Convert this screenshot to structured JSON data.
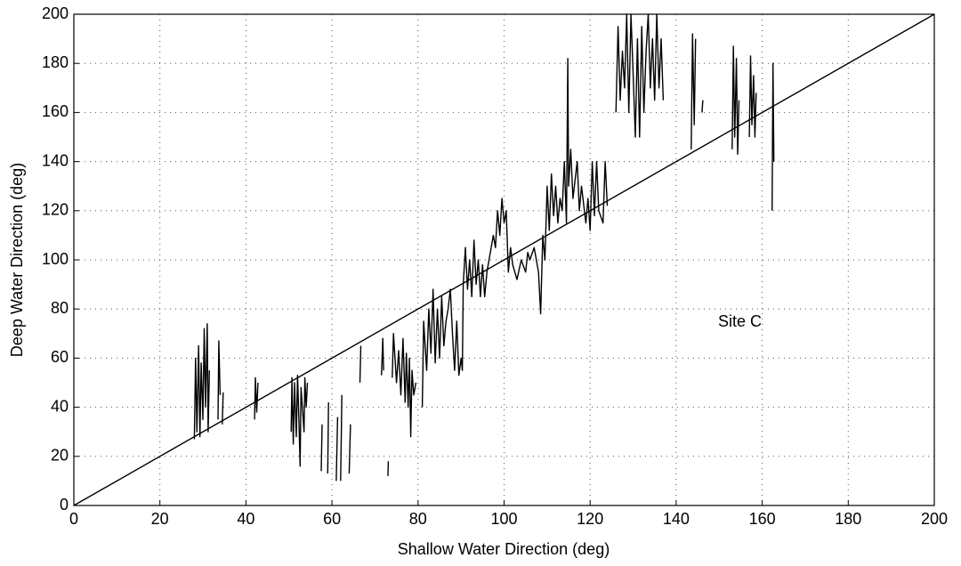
{
  "chart_data": {
    "type": "line",
    "xlabel": "Shallow Water Direction (deg)",
    "ylabel": "Deep Water Direction (deg)",
    "annotation": "Site C",
    "xlim": [
      0,
      200
    ],
    "ylim": [
      0,
      200
    ],
    "xticks": [
      0,
      20,
      40,
      60,
      80,
      100,
      120,
      140,
      160,
      180,
      200
    ],
    "yticks": [
      0,
      20,
      40,
      60,
      80,
      100,
      120,
      140,
      160,
      180,
      200
    ],
    "grid": true,
    "series": [
      {
        "color": "#000000",
        "x": [
          28,
          28.3,
          28.6,
          29,
          29.3,
          29.6,
          30,
          30.3,
          30.6,
          31,
          31.2,
          31.5,
          null,
          33.5,
          33.7,
          34,
          null,
          34.5,
          34.7,
          null,
          42,
          42.2,
          42.5,
          42.8,
          null,
          50.5,
          50.7,
          51,
          51.3,
          51.7,
          52,
          52.3,
          52.6,
          52.8,
          53.5,
          53.7,
          54,
          54.3,
          null,
          57.5,
          57.7,
          null,
          59,
          59.2,
          null,
          61,
          61.3,
          null,
          62,
          62.3,
          null,
          64,
          64.3,
          null,
          66.5,
          66.7,
          null,
          71.5,
          71.8,
          72,
          null,
          73,
          73.1,
          null,
          74,
          74.3,
          75,
          75.5,
          76,
          76.5,
          77,
          77.3,
          77.7,
          78,
          78.3,
          78.6,
          79,
          79.5,
          null,
          81,
          81.3,
          82,
          82.5,
          83,
          83.5,
          84,
          84.5,
          85,
          85.5,
          86,
          86.5,
          87,
          87.5,
          88,
          88.5,
          89,
          89.5,
          90,
          90.3,
          90.5,
          91,
          91.5,
          92,
          92.5,
          93,
          93.5,
          94,
          94.5,
          95,
          95.5,
          96,
          96.5,
          97,
          97.5,
          98,
          98.5,
          99,
          99.5,
          100,
          100.5,
          101,
          101.5,
          102,
          103,
          104,
          105,
          105.5,
          106,
          107,
          108,
          108.5,
          109,
          109.5,
          110,
          110.5,
          111,
          111.5,
          112,
          112.5,
          113,
          113.5,
          114,
          114.5,
          114.8,
          115,
          115.5,
          116,
          117,
          117.5,
          118,
          119,
          119.5,
          120,
          120.5,
          121,
          121.5,
          122,
          123,
          123.5,
          124,
          null,
          126,
          126.5,
          127,
          127.5,
          128,
          128.5,
          129,
          129.5,
          130,
          130.5,
          131,
          131.5,
          132,
          132.5,
          133,
          133.5,
          134,
          134.5,
          135,
          135.5,
          136,
          136.5,
          137,
          null,
          143.5,
          143.8,
          144.2,
          144.5,
          null,
          146,
          146.2,
          null,
          153,
          153.3,
          153.6,
          154,
          154.3,
          154.6,
          null,
          157,
          157.3,
          157.6,
          158,
          158.3,
          158.6,
          null,
          162.3,
          162.5,
          162.7
        ],
        "values": [
          27,
          60,
          30,
          65,
          28,
          58,
          35,
          72,
          40,
          74,
          30,
          55,
          null,
          35,
          67,
          45,
          null,
          33,
          46,
          null,
          35,
          52,
          38,
          50,
          null,
          30,
          52,
          25,
          50,
          28,
          53,
          35,
          16,
          48,
          30,
          52,
          40,
          50,
          null,
          14,
          33,
          null,
          13,
          42,
          null,
          10,
          36,
          null,
          10,
          45,
          null,
          13,
          33,
          null,
          50,
          65,
          null,
          53,
          68,
          55,
          null,
          12,
          18,
          null,
          52,
          70,
          50,
          63,
          45,
          68,
          42,
          62,
          40,
          60,
          28,
          55,
          45,
          50,
          null,
          40,
          75,
          55,
          80,
          62,
          88,
          58,
          80,
          60,
          85,
          65,
          75,
          80,
          88,
          70,
          55,
          75,
          53,
          60,
          55,
          90,
          105,
          88,
          100,
          85,
          108,
          90,
          100,
          85,
          98,
          85,
          95,
          100,
          105,
          110,
          105,
          120,
          110,
          125,
          115,
          120,
          95,
          105,
          98,
          92,
          100,
          95,
          103,
          100,
          105,
          95,
          78,
          110,
          100,
          130,
          112,
          135,
          118,
          130,
          115,
          125,
          120,
          140,
          115,
          182,
          130,
          145,
          125,
          140,
          120,
          130,
          115,
          125,
          112,
          140,
          118,
          140,
          120,
          115,
          140,
          122,
          null,
          160,
          195,
          165,
          185,
          170,
          200,
          160,
          200,
          175,
          150,
          190,
          150,
          195,
          160,
          185,
          200,
          170,
          190,
          165,
          200,
          170,
          190,
          165,
          null,
          145,
          192,
          155,
          190,
          null,
          160,
          165,
          null,
          145,
          187,
          150,
          182,
          143,
          165,
          null,
          150,
          183,
          155,
          175,
          150,
          168,
          null,
          120,
          180,
          140
        ]
      },
      {
        "color": "#000000",
        "x": [
          0,
          200
        ],
        "values": [
          0,
          200
        ]
      }
    ]
  }
}
